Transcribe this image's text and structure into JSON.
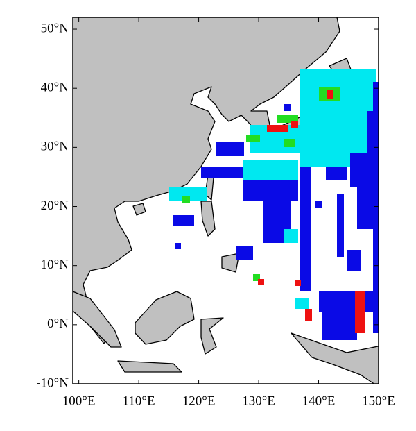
{
  "chart_data": {
    "type": "map",
    "xlim": [
      99,
      150
    ],
    "ylim": [
      -10,
      52
    ],
    "xticks": [
      {
        "value": 100,
        "label": "100°E"
      },
      {
        "value": 110,
        "label": "110°E"
      },
      {
        "value": 120,
        "label": "120°E"
      },
      {
        "value": 130,
        "label": "130°E"
      },
      {
        "value": 140,
        "label": "140°E"
      },
      {
        "value": 150,
        "label": "150°E"
      }
    ],
    "yticks": [
      {
        "value": 50,
        "label": "50°N"
      },
      {
        "value": 40,
        "label": "40°N"
      },
      {
        "value": 30,
        "label": "30°N"
      },
      {
        "value": 20,
        "label": "20°N"
      },
      {
        "value": 10,
        "label": "10°N"
      },
      {
        "value": 0,
        "label": "0°N"
      },
      {
        "value": -10,
        "label": "-10°N"
      }
    ]
  }
}
